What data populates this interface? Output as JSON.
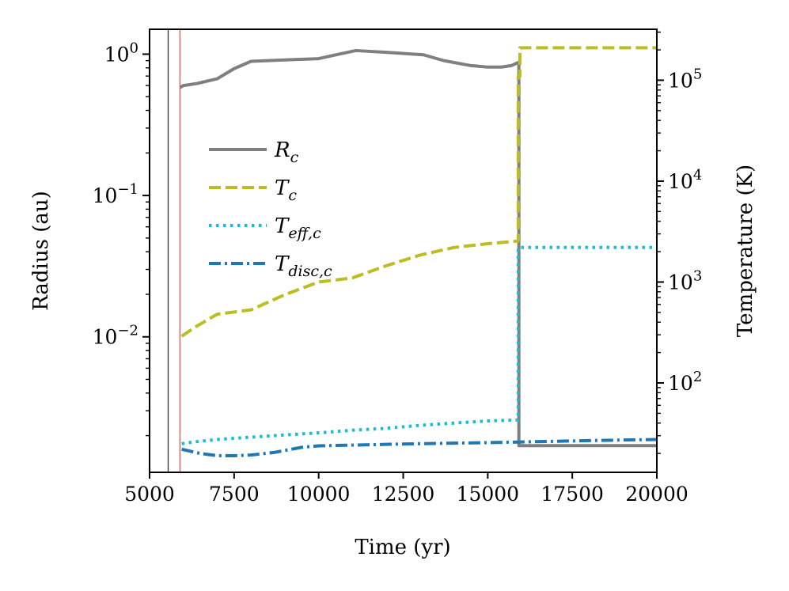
{
  "chart_data": {
    "type": "line",
    "xlabel": "Time (yr)",
    "ylabel_left": "Radius (au)",
    "ylabel_right": "Temperature (K)",
    "xlim": [
      5000,
      20000
    ],
    "ylim_left": [
      0.0011,
      1.5
    ],
    "ylim_right": [
      13,
      320000
    ],
    "x_ticks": [
      5000,
      7500,
      10000,
      12500,
      15000,
      17500,
      20000
    ],
    "x_tick_labels": [
      "5000",
      "7500",
      "10000",
      "12500",
      "15000",
      "17500",
      "20000"
    ],
    "left_ticks": [
      {
        "value": 1,
        "base": "10",
        "exp": "0"
      },
      {
        "value": 0.1,
        "base": "10",
        "exp": "−1"
      },
      {
        "value": 0.01,
        "base": "10",
        "exp": "−2"
      }
    ],
    "right_ticks": [
      {
        "value": 100000,
        "base": "10",
        "exp": "5"
      },
      {
        "value": 10000,
        "base": "10",
        "exp": "4"
      },
      {
        "value": 1000,
        "base": "10",
        "exp": "3"
      },
      {
        "value": 100,
        "base": "10",
        "exp": "2"
      }
    ],
    "vlines": [
      {
        "x": 5550,
        "color": "#333333"
      },
      {
        "x": 5900,
        "color": "#e05050"
      }
    ],
    "legend": [
      {
        "base": "R",
        "sub": "c",
        "color": "#7f7f7f",
        "dash": "solid"
      },
      {
        "base": "T",
        "sub": "c",
        "color": "#bcbd22",
        "dash": "dashed"
      },
      {
        "base": "T",
        "sub": "eff,c",
        "color": "#17becf",
        "dash": "dotted"
      },
      {
        "base": "T",
        "sub": "disc,c",
        "color": "#1f77b4",
        "dash": "dashdot"
      }
    ],
    "series": [
      {
        "name": "R_c",
        "axis": "left",
        "color": "#7f7f7f",
        "dash": "solid",
        "x": [
          5900,
          6000,
          6400,
          7000,
          7500,
          8000,
          9000,
          10000,
          10600,
          11100,
          12000,
          13100,
          13700,
          14500,
          15000,
          15400,
          15700,
          15880,
          15880,
          15920,
          15920,
          20000
        ],
        "y": [
          0.58,
          0.6,
          0.62,
          0.67,
          0.79,
          0.89,
          0.91,
          0.93,
          1.0,
          1.06,
          1.03,
          0.99,
          0.9,
          0.83,
          0.81,
          0.81,
          0.83,
          0.87,
          0.87,
          0.87,
          0.0017,
          0.0017
        ]
      },
      {
        "name": "T_c",
        "axis": "right",
        "color": "#bcbd22",
        "dash": "dashed",
        "x": [
          5950,
          6300,
          7000,
          8000,
          9000,
          10000,
          11000,
          12000,
          13000,
          14000,
          15000,
          15900,
          15900,
          15950,
          15950,
          20000
        ],
        "y": [
          290,
          350,
          480,
          530,
          750,
          1000,
          1100,
          1450,
          1850,
          2200,
          2400,
          2550,
          110000,
          110000,
          210000,
          210000
        ]
      },
      {
        "name": "T_eff,c",
        "axis": "right",
        "color": "#17becf",
        "dash": "dotted",
        "x": [
          5950,
          6300,
          7000,
          8000,
          9000,
          10000,
          11000,
          12000,
          13000,
          14000,
          15000,
          15900,
          15900,
          20000
        ],
        "y": [
          25,
          26,
          27.5,
          29,
          30.5,
          32,
          34,
          35.5,
          38,
          40,
          42,
          43,
          2200,
          2200
        ]
      },
      {
        "name": "T_disc,c",
        "axis": "right",
        "color": "#1f77b4",
        "dash": "dashdot",
        "x": [
          5950,
          6500,
          7000,
          7500,
          8000,
          8700,
          9500,
          10000,
          11000,
          12000,
          13000,
          14000,
          15000,
          16000,
          17000,
          18000,
          19000,
          20000
        ],
        "y": [
          22,
          20,
          19,
          19,
          19.3,
          20.5,
          23,
          23.8,
          24.2,
          24.6,
          25,
          25.3,
          25.6,
          26,
          26.4,
          26.8,
          27.2,
          27.5
        ]
      }
    ]
  }
}
